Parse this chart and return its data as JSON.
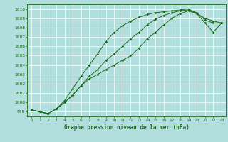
{
  "xlabel": "Graphe pression niveau de la mer (hPa)",
  "ylim": [
    998.5,
    1010.5
  ],
  "xlim": [
    -0.5,
    23.5
  ],
  "yticks": [
    999,
    1000,
    1001,
    1002,
    1003,
    1004,
    1005,
    1006,
    1007,
    1008,
    1009,
    1010
  ],
  "xticks": [
    0,
    1,
    2,
    3,
    4,
    5,
    6,
    7,
    8,
    9,
    10,
    11,
    12,
    13,
    14,
    15,
    16,
    17,
    18,
    19,
    20,
    21,
    22,
    23
  ],
  "bg_color": "#b2dede",
  "line_color": "#1a6b1a",
  "grid_color": "#ffffff",
  "series1": [
    999.2,
    999.0,
    998.8,
    999.3,
    1000.0,
    1000.8,
    1001.8,
    1002.8,
    1003.5,
    1004.5,
    1005.2,
    1006.0,
    1006.8,
    1007.5,
    1008.3,
    1008.9,
    1009.3,
    1009.6,
    1009.8,
    1009.9,
    1009.6,
    1008.8,
    1008.5,
    1008.5
  ],
  "series2": [
    999.2,
    999.0,
    998.8,
    999.3,
    1000.2,
    1001.5,
    1002.8,
    1004.0,
    1005.2,
    1006.5,
    1007.5,
    1008.2,
    1008.7,
    1009.1,
    1009.4,
    1009.6,
    1009.7,
    1009.8,
    1009.9,
    1010.0,
    1009.5,
    1009.0,
    1008.7,
    1008.5
  ],
  "series3": [
    999.2,
    999.0,
    998.8,
    999.3,
    1000.0,
    1000.8,
    1001.8,
    1002.5,
    1003.0,
    1003.5,
    1004.0,
    1004.5,
    1005.0,
    1005.8,
    1006.8,
    1007.5,
    1008.3,
    1009.0,
    1009.5,
    1009.8,
    1009.5,
    1008.5,
    1007.5,
    1008.5
  ]
}
